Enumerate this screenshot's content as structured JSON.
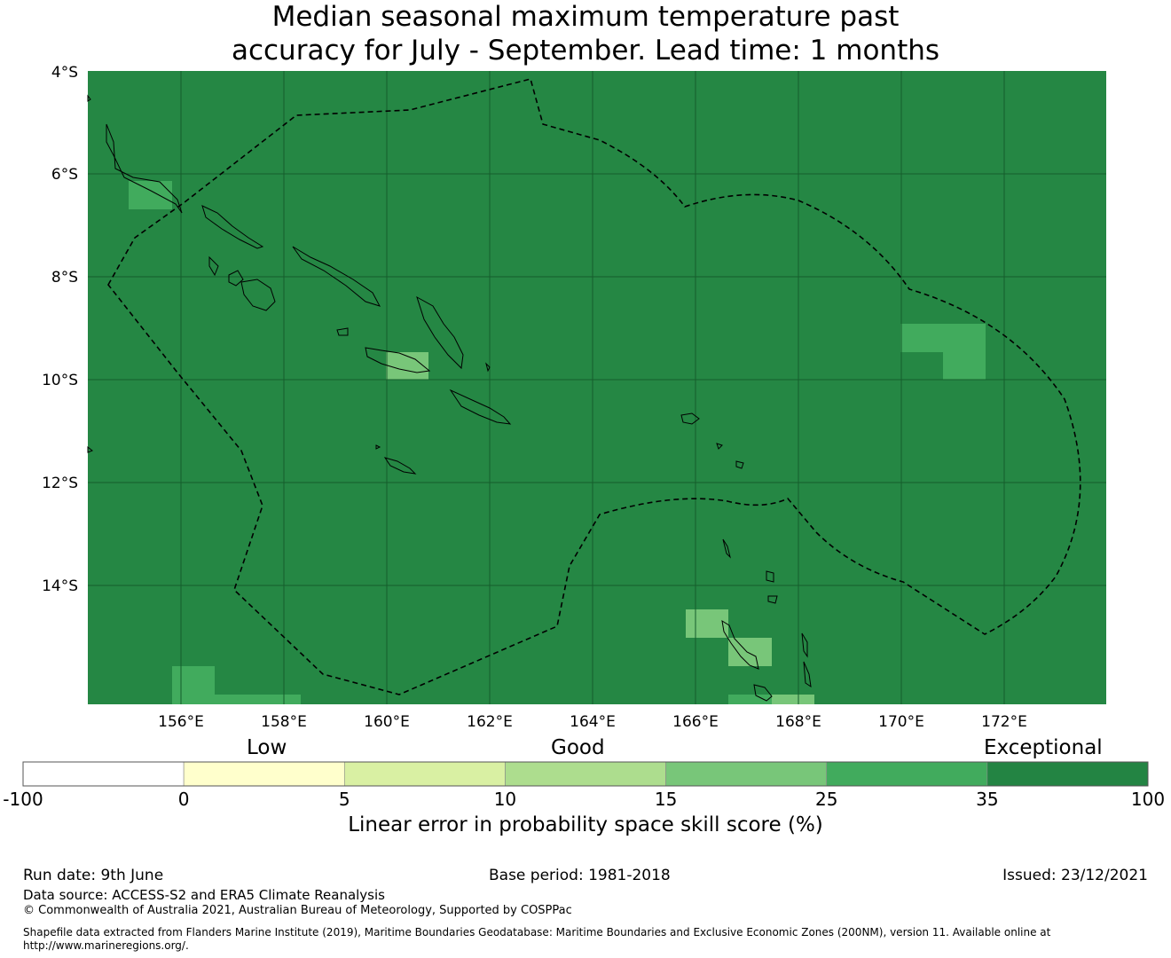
{
  "title_line1": "Median seasonal maximum temperature past",
  "title_line2": "accuracy for July - September. Lead time: 1 months",
  "map": {
    "lat_labels": [
      "4°S",
      "6°S",
      "8°S",
      "10°S",
      "12°S",
      "14°S"
    ],
    "lon_labels": [
      "156°E",
      "158°E",
      "160°E",
      "162°E",
      "164°E",
      "166°E",
      "168°E",
      "170°E",
      "172°E"
    ],
    "background_color": "#258744"
  },
  "legend": {
    "levels": {
      "low": "Low",
      "good": "Good",
      "exceptional": "Exceptional"
    },
    "ticks": [
      "-100",
      "0",
      "5",
      "10",
      "15",
      "25",
      "35",
      "100"
    ],
    "colors": [
      "#ffffff",
      "#ffffcc",
      "#d9f0a3",
      "#addd8e",
      "#78c679",
      "#41ab5d",
      "#238443"
    ],
    "title": "Linear error in probability space skill score (%)"
  },
  "footer": {
    "run_date": "Run date: 9th June",
    "base_period": "Base period: 1981-2018",
    "issued": "Issued: 23/12/2021",
    "data_source": "Data source: ACCESS-S2 and ERA5 Climate Reanalysis",
    "copyright": "© Commonwealth of Australia 2021, Australian Bureau of Meteorology, Supported by COSPPac",
    "shapefile_line1": "Shapefile data extracted from Flanders Marine Institute (2019), Maritime Boundaries Geodatabase: Maritime Boundaries and Exclusive Economic Zones (200NM), version 11. Available online at",
    "shapefile_line2": "http://www.marineregions.org/."
  }
}
